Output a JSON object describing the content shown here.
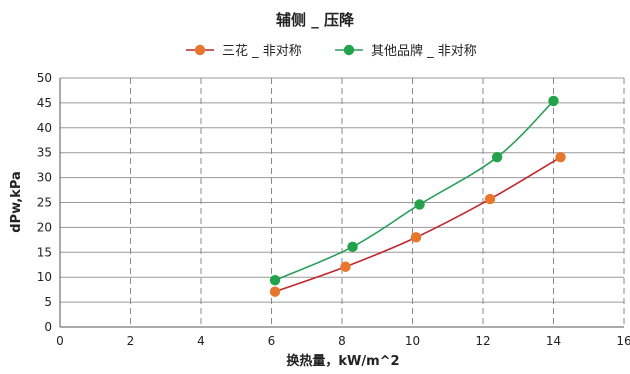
{
  "chart_data": {
    "type": "line",
    "title": "辅侧 _ 压降",
    "xlabel": "换热量，kW/m^2",
    "ylabel": "dPw,kPa",
    "xlim": [
      0,
      16
    ],
    "ylim": [
      0,
      50
    ],
    "x_ticks": [
      0,
      2,
      4,
      6,
      8,
      10,
      12,
      14,
      16
    ],
    "y_ticks": [
      0,
      5,
      10,
      15,
      20,
      25,
      30,
      35,
      40,
      45,
      50
    ],
    "vertical_grid": "dashed",
    "horizontal_grid": "solid",
    "legend_position": "top-center",
    "series": [
      {
        "name": "三花 _ 非对称",
        "line_color": "#c0282d",
        "marker_color": "#e8762d",
        "points": [
          {
            "x": 6.1,
            "y": 7.1
          },
          {
            "x": 8.1,
            "y": 12.1
          },
          {
            "x": 10.1,
            "y": 18.0
          },
          {
            "x": 12.2,
            "y": 25.7
          },
          {
            "x": 14.2,
            "y": 34.1
          }
        ]
      },
      {
        "name": "其他品牌 _ 非对称",
        "line_color": "#2a9d5c",
        "marker_color": "#22a24a",
        "points": [
          {
            "x": 6.1,
            "y": 9.4
          },
          {
            "x": 8.3,
            "y": 16.1
          },
          {
            "x": 10.2,
            "y": 24.6
          },
          {
            "x": 12.4,
            "y": 34.1
          },
          {
            "x": 14.0,
            "y": 45.4
          }
        ]
      }
    ]
  }
}
